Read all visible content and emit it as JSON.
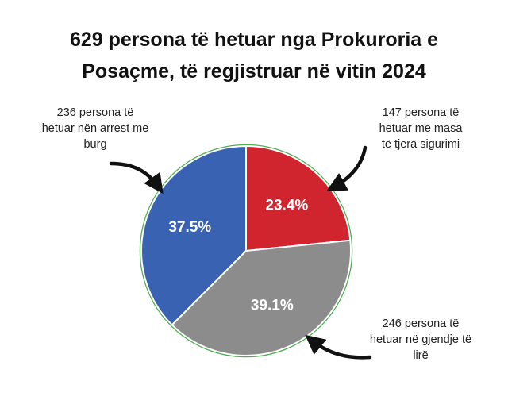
{
  "chart_data": {
    "type": "pie",
    "title_lines": [
      "629 persona të hetuar nga Prokuroria e",
      "Posaçme, të regjistruar në vitin 2024"
    ],
    "slices": [
      {
        "label_lines": [
          "147 persona të",
          "hetuar me masa",
          "të tjera sigurimi"
        ],
        "count": 147,
        "percent": 23.4,
        "percent_label": "23.4%",
        "color": "#d0242f"
      },
      {
        "label_lines": [
          "246 persona të",
          "hetuar në gjendje të",
          "lirë"
        ],
        "count": 246,
        "percent": 39.1,
        "percent_label": "39.1%",
        "color": "#8c8c8c"
      },
      {
        "label_lines": [
          "236 persona të",
          "hetuar nën arrest me",
          "burg"
        ],
        "count": 236,
        "percent": 37.5,
        "percent_label": "37.5%",
        "color": "#3a62b2"
      }
    ],
    "start_angle_deg": 0,
    "direction": "clockwise",
    "slice_border_color": "#ffffff",
    "outline_color": "#4caf50",
    "legend": "none (callout annotations with arrows)"
  }
}
